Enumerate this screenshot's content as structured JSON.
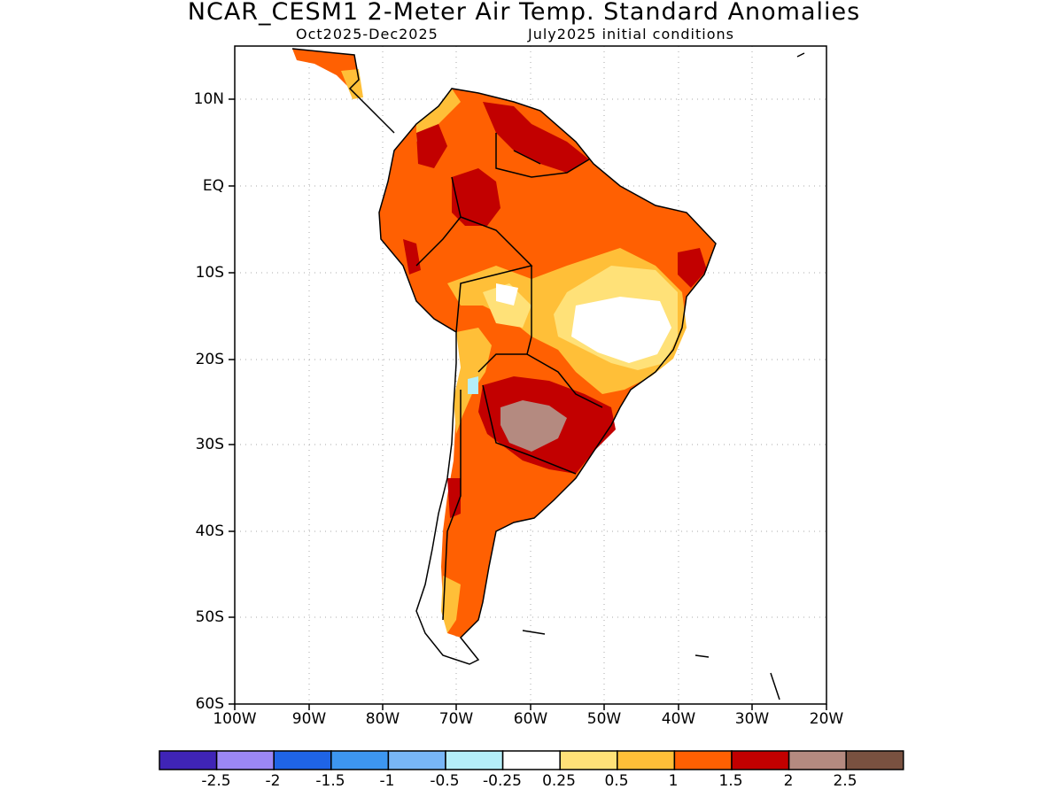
{
  "header": {
    "title": "NCAR_CESM1 2-Meter Air Temp. Standard Anomalies",
    "period": "Oct2025-Dec2025",
    "init": "July2025 initial conditions"
  },
  "map": {
    "lat_labels": [
      "10N",
      "EQ",
      "10S",
      "20S",
      "30S",
      "40S",
      "50S",
      "60S"
    ],
    "lon_labels": [
      "100W",
      "90W",
      "80W",
      "70W",
      "60W",
      "50W",
      "40W",
      "30W",
      "20W"
    ]
  },
  "colorbar": {
    "labels": [
      "-2.5",
      "-2",
      "-1.5",
      "-1",
      "-0.5",
      "-0.25",
      "0.25",
      "0.5",
      "1",
      "1.5",
      "2",
      "2.5"
    ],
    "colors": [
      "#3f24b6",
      "#9b87f5",
      "#1f64e6",
      "#3d96f0",
      "#78b6f6",
      "#b4eef8",
      "#ffffff",
      "#ffe178",
      "#ffbf38",
      "#ff6002",
      "#c20000",
      "#b48a80",
      "#795140"
    ]
  }
}
